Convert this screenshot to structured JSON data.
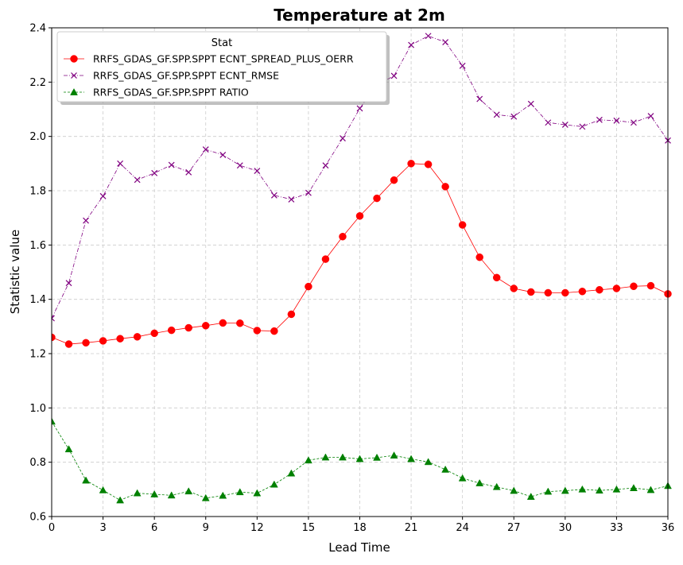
{
  "chart_data": {
    "type": "line",
    "title": "Temperature at 2m",
    "xlabel": "Lead Time",
    "ylabel": "Statistic value",
    "xlim": [
      0,
      36
    ],
    "ylim": [
      0.6,
      2.4
    ],
    "xticks": [
      0,
      3,
      6,
      9,
      12,
      15,
      18,
      21,
      24,
      27,
      30,
      33,
      36
    ],
    "yticks": [
      0.6,
      0.8,
      1.0,
      1.2,
      1.4,
      1.6,
      1.8,
      2.0,
      2.2,
      2.4
    ],
    "grid": true,
    "legend_title": "Stat",
    "legend_position": "top-left",
    "x": [
      0,
      1,
      2,
      3,
      4,
      5,
      6,
      7,
      8,
      9,
      10,
      11,
      12,
      13,
      14,
      15,
      16,
      17,
      18,
      19,
      20,
      21,
      22,
      23,
      24,
      25,
      26,
      27,
      28,
      29,
      30,
      31,
      32,
      33,
      34,
      35,
      36
    ],
    "series": [
      {
        "name": "RRFS_GDAS_GF.SPP.SPPT ECNT_SPREAD_PLUS_OERR",
        "color": "#ff0000",
        "marker": "circle",
        "linestyle": "solid",
        "values": [
          1.26,
          1.235,
          1.24,
          1.247,
          1.255,
          1.262,
          1.275,
          1.286,
          1.295,
          1.303,
          1.313,
          1.312,
          1.285,
          1.283,
          1.345,
          1.447,
          1.548,
          1.631,
          1.707,
          1.772,
          1.839,
          1.9,
          1.897,
          1.815,
          1.674,
          1.555,
          1.48,
          1.44,
          1.427,
          1.424,
          1.424,
          1.429,
          1.435,
          1.44,
          1.448,
          1.45,
          1.42
        ]
      },
      {
        "name": "RRFS_GDAS_GF.SPP.SPPT ECNT_RMSE",
        "color": "#800080",
        "marker": "x",
        "linestyle": "dashdot",
        "values": [
          1.33,
          1.46,
          1.69,
          1.78,
          1.9,
          1.84,
          1.865,
          1.895,
          1.868,
          1.952,
          1.932,
          1.893,
          1.873,
          1.783,
          1.768,
          1.792,
          1.893,
          1.993,
          2.103,
          2.19,
          2.223,
          2.337,
          2.37,
          2.347,
          2.26,
          2.138,
          2.08,
          2.073,
          2.12,
          2.051,
          2.043,
          2.036,
          2.061,
          2.058,
          2.051,
          2.075,
          1.985
        ]
      },
      {
        "name": "RRFS_GDAS_GF.SPP.SPPT RATIO",
        "color": "#008000",
        "marker": "triangle",
        "linestyle": "dashed",
        "values": [
          0.95,
          0.848,
          0.733,
          0.697,
          0.66,
          0.686,
          0.682,
          0.678,
          0.693,
          0.668,
          0.677,
          0.69,
          0.686,
          0.718,
          0.759,
          0.807,
          0.818,
          0.818,
          0.812,
          0.817,
          0.825,
          0.812,
          0.801,
          0.773,
          0.741,
          0.723,
          0.709,
          0.695,
          0.673,
          0.692,
          0.695,
          0.7,
          0.696,
          0.7,
          0.705,
          0.698,
          0.713
        ]
      }
    ]
  }
}
